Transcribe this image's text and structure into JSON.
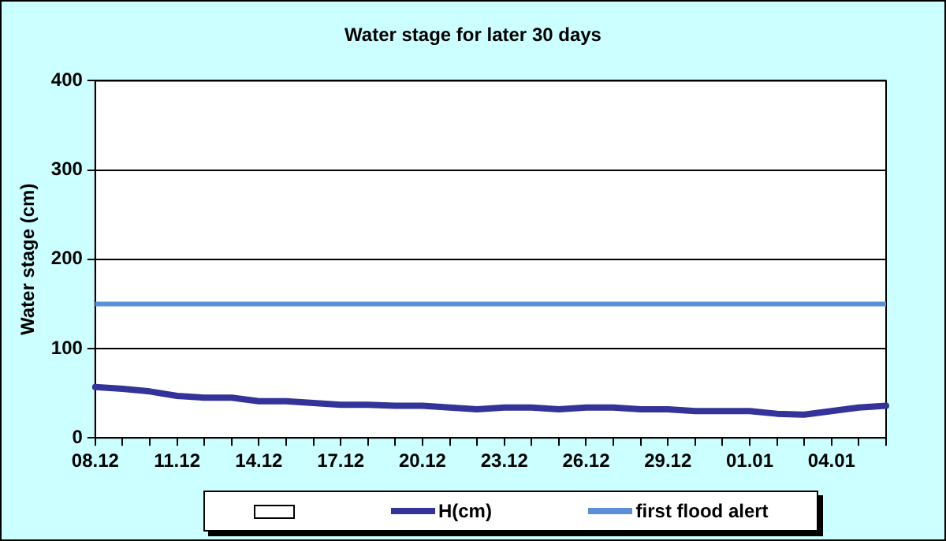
{
  "chart_data": {
    "type": "line",
    "title": "Water stage for later 30 days",
    "ylabel": "Water stage (cm)",
    "categories": [
      "08.12",
      null,
      null,
      "11.12",
      null,
      null,
      "14.12",
      null,
      null,
      "17.12",
      null,
      null,
      "20.12",
      null,
      null,
      "23.12",
      null,
      null,
      "26.12",
      null,
      null,
      "29.12",
      null,
      null,
      "01.01",
      null,
      null,
      "04.01",
      null,
      null
    ],
    "series": [
      {
        "name": "H(cm)",
        "color": "#333399",
        "values": [
          57,
          55,
          52,
          47,
          45,
          45,
          41,
          41,
          39,
          37,
          37,
          36,
          36,
          34,
          32,
          34,
          34,
          32,
          34,
          34,
          32,
          32,
          30,
          30,
          30,
          27,
          26,
          30,
          34,
          36
        ]
      }
    ],
    "ref_lines": [
      {
        "axis": "y",
        "value": 150,
        "label": "first flood alert",
        "color": "#5b8fd8"
      }
    ],
    "ylim": [
      0,
      400
    ],
    "yticks": [
      0,
      100,
      200,
      300,
      400
    ],
    "grid": "y",
    "legend": "bottom",
    "marker": "none",
    "line_style": "solid"
  }
}
